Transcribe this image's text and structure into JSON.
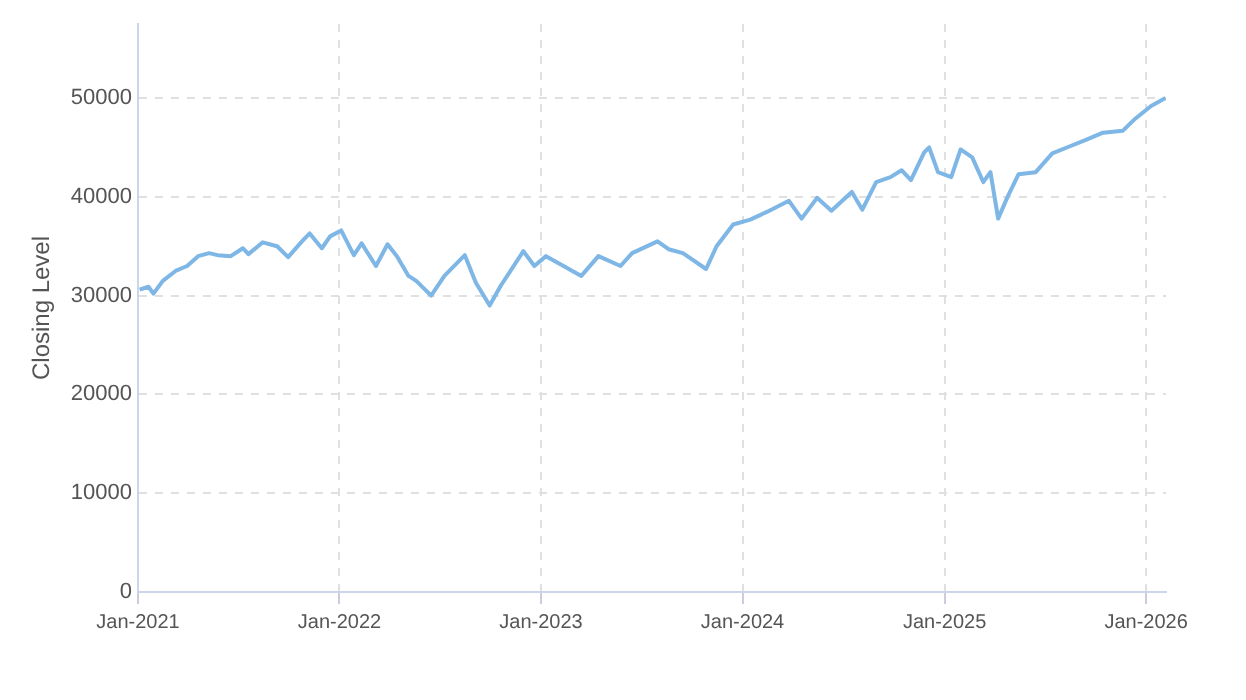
{
  "chart_data": {
    "type": "line",
    "ylabel": "Closing Level",
    "x": [
      "2021-01-04",
      "2021-01-20",
      "2021-01-29",
      "2021-02-15",
      "2021-03-10",
      "2021-03-31",
      "2021-04-20",
      "2021-05-10",
      "2021-05-25",
      "2021-06-18",
      "2021-07-10",
      "2021-07-20",
      "2021-08-15",
      "2021-09-10",
      "2021-09-30",
      "2021-10-25",
      "2021-11-08",
      "2021-11-30",
      "2021-12-15",
      "2022-01-04",
      "2022-01-27",
      "2022-02-10",
      "2022-03-08",
      "2022-03-29",
      "2022-04-15",
      "2022-05-06",
      "2022-05-20",
      "2022-06-16",
      "2022-07-10",
      "2022-08-16",
      "2022-09-05",
      "2022-09-30",
      "2022-10-20",
      "2022-11-30",
      "2022-12-20",
      "2023-01-10",
      "2023-02-01",
      "2023-03-15",
      "2023-04-15",
      "2023-05-25",
      "2023-06-15",
      "2023-07-31",
      "2023-08-20",
      "2023-09-15",
      "2023-10-27",
      "2023-11-15",
      "2023-12-15",
      "2024-01-15",
      "2024-02-15",
      "2024-03-25",
      "2024-04-17",
      "2024-05-15",
      "2024-06-10",
      "2024-07-17",
      "2024-08-05",
      "2024-08-30",
      "2024-09-25",
      "2024-10-15",
      "2024-11-01",
      "2024-11-25",
      "2024-12-04",
      "2024-12-20",
      "2025-01-13",
      "2025-01-30",
      "2025-02-20",
      "2025-03-12",
      "2025-03-25",
      "2025-04-08",
      "2025-04-25",
      "2025-05-15",
      "2025-06-15",
      "2025-07-15",
      "2025-08-15",
      "2025-09-15",
      "2025-10-15",
      "2025-11-20",
      "2025-12-10",
      "2026-01-10",
      "2026-02-05"
    ],
    "series": [
      {
        "color": "#7eb6e6",
        "values": [
          30600,
          30900,
          30200,
          31500,
          32500,
          33000,
          34000,
          34300,
          34100,
          34000,
          34800,
          34200,
          35400,
          35000,
          33900,
          35500,
          36300,
          34800,
          36000,
          36600,
          34100,
          35300,
          33000,
          35200,
          34000,
          32000,
          31500,
          30000,
          32000,
          34100,
          31300,
          29000,
          31000,
          34500,
          33000,
          34000,
          33300,
          32000,
          34000,
          33000,
          34300,
          35500,
          34700,
          34300,
          32700,
          35000,
          37200,
          37700,
          38500,
          39600,
          37800,
          39900,
          38600,
          40500,
          38700,
          41500,
          42000,
          42700,
          41700,
          44500,
          45000,
          42500,
          42000,
          44800,
          44000,
          41500,
          42500,
          37800,
          40000,
          42300,
          42500,
          44400,
          45100,
          45800,
          46500,
          46700,
          47800,
          49200,
          50000
        ]
      }
    ],
    "xlim": [
      "2021-01-01",
      "2026-02-06"
    ],
    "xticks": [
      {
        "value": "2021-01-01",
        "label": "Jan-2021"
      },
      {
        "value": "2022-01-01",
        "label": "Jan-2022"
      },
      {
        "value": "2023-01-01",
        "label": "Jan-2023"
      },
      {
        "value": "2024-01-01",
        "label": "Jan-2024"
      },
      {
        "value": "2025-01-01",
        "label": "Jan-2025"
      },
      {
        "value": "2026-01-01",
        "label": "Jan-2026"
      }
    ],
    "ylim": [
      0,
      57500
    ],
    "yticks": [
      0,
      10000,
      20000,
      30000,
      40000,
      50000
    ],
    "grid": true,
    "legend": false
  }
}
